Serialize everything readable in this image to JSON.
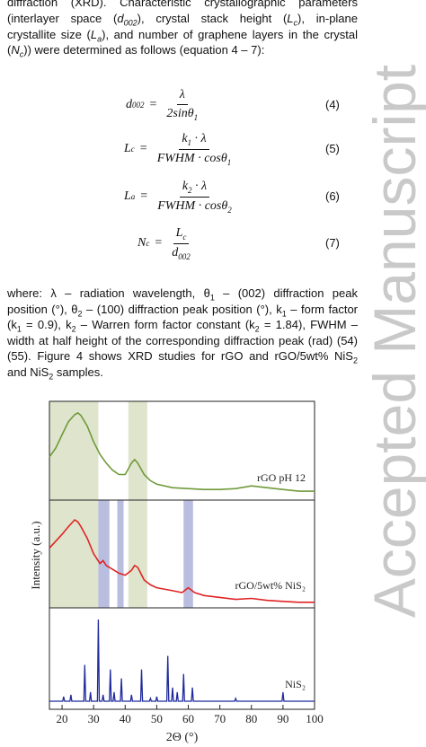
{
  "intro": [
    [
      "diffraction (XRD). Characteristic crystallographic parameters"
    ],
    [
      "(interlayer space (",
      "d",
      "002",
      "), crystal stack height (",
      "L",
      "c",
      "), in-plane"
    ],
    [
      "crystallite size (",
      "L",
      "a",
      "), and number of graphene layers in the crystal"
    ],
    [
      "(",
      "N",
      "c",
      ")) were determined as follows (equation 4 – 7):"
    ]
  ],
  "equations": [
    {
      "lhs": "d",
      "lhs_sub": "002",
      "eq": "=",
      "num": "λ",
      "den": "2sinθ",
      "den_sub": "1",
      "no": "(4)"
    },
    {
      "lhs": "L",
      "lhs_sub": "c",
      "eq": "=",
      "num": "k",
      "num_sub": "1",
      "num_rest": " · λ",
      "den": "FWHM · cosθ",
      "den_sub": "1",
      "no": "(5)"
    },
    {
      "lhs": "L",
      "lhs_sub": "a",
      "eq": "=",
      "num": "k",
      "num_sub": "2",
      "num_rest": " · λ",
      "den": "FWHM · cosθ",
      "den_sub": "2",
      "no": "(6)"
    },
    {
      "lhs": "N",
      "lhs_sub": "c",
      "eq": "=",
      "num": "L",
      "num_sub": "c",
      "den": "d",
      "den_sub": "002",
      "no": "(7)"
    }
  ],
  "where": [
    [
      "where: λ – radiation wavelength, θ",
      "1",
      " – (002) diffraction peak"
    ],
    [
      "position (°), θ",
      "2",
      " – (100) diffraction peak position (°), k",
      "1",
      " – form factor"
    ],
    [
      "(k",
      "1",
      " = 0.9), k",
      "2",
      " – Warren form factor constant (k",
      "2",
      " = 1.84), FWHM –"
    ],
    [
      "width at half height of the corresponding diffraction peak (rad) (54)"
    ],
    [
      "(55). Figure 4 shows XRD studies for rGO and rGO/5wt% NiS",
      "2"
    ],
    [
      "and NiS",
      "2",
      " samples."
    ]
  ],
  "watermark": "Accepted Manuscript",
  "chart_data": {
    "type": "line",
    "xlabel": "2Θ (°)",
    "ylabel": "Intensity (a.u.)",
    "xlim": [
      16,
      100
    ],
    "xticks": [
      20,
      30,
      40,
      50,
      60,
      70,
      80,
      90,
      100
    ],
    "ylim": [
      0,
      100
    ],
    "green_bands": [
      [
        16,
        31.5
      ],
      [
        41,
        47
      ]
    ],
    "green_color": "#dfe4cd",
    "blue_bands": [
      [
        31.5,
        35
      ],
      [
        37.5,
        39.5
      ],
      [
        58.5,
        61.5
      ]
    ],
    "blue_color": "#b9bde0",
    "series": [
      {
        "name": "rGO pH 12",
        "color": "#6f9a3a",
        "x": [
          16,
          18,
          20,
          22,
          24,
          25,
          26,
          28,
          30,
          32,
          34,
          36,
          38,
          40,
          42,
          43,
          44,
          46,
          48,
          50,
          55,
          60,
          65,
          70,
          75,
          80,
          85,
          90,
          95,
          100
        ],
        "values": [
          45,
          55,
          70,
          85,
          93,
          95,
          92,
          80,
          62,
          48,
          38,
          30,
          25,
          25,
          38,
          42,
          38,
          25,
          18,
          14,
          10,
          9,
          8,
          8,
          9,
          12,
          10,
          8,
          6,
          6
        ]
      },
      {
        "name": "rGO/5wt% NiS₂",
        "color": "#e02424",
        "x": [
          16,
          18,
          20,
          22,
          24,
          25,
          26,
          28,
          30,
          32,
          33,
          34,
          36,
          38,
          40,
          42,
          43,
          44,
          46,
          48,
          50,
          55,
          58,
          60,
          62,
          65,
          70,
          75,
          80,
          85,
          90,
          95,
          100
        ],
        "values": [
          58,
          65,
          72,
          80,
          87,
          85,
          80,
          68,
          52,
          42,
          45,
          40,
          36,
          32,
          30,
          35,
          40,
          38,
          25,
          20,
          17,
          14,
          12,
          17,
          12,
          9,
          7,
          5,
          6,
          4,
          3,
          2,
          2
        ]
      },
      {
        "name": "NiS₂",
        "color": "#1f2a9c",
        "x": [
          16,
          20.2,
          20.5,
          20.8,
          22.5,
          22.8,
          23.1,
          26.9,
          27.2,
          27.5,
          28.7,
          29,
          29.3,
          31.2,
          31.5,
          31.8,
          32.7,
          33,
          33.3,
          35,
          35.3,
          35.6,
          36.2,
          36.5,
          36.8,
          38.5,
          38.8,
          39.1,
          41.7,
          42,
          42.3,
          44.9,
          45.2,
          45.5,
          47.7,
          48,
          48.3,
          49.7,
          50,
          50.3,
          53.2,
          53.5,
          53.8,
          54.7,
          55,
          55.3,
          56.2,
          56.5,
          56.8,
          58.2,
          58.5,
          58.8,
          61,
          61.3,
          61.6,
          74.7,
          75,
          75.3,
          89.7,
          90,
          90.3,
          100
        ],
        "values": [
          5,
          5,
          10,
          5,
          5,
          12,
          5,
          5,
          45,
          5,
          5,
          15,
          5,
          5,
          95,
          5,
          5,
          12,
          5,
          5,
          40,
          5,
          5,
          15,
          5,
          5,
          30,
          5,
          5,
          12,
          5,
          5,
          40,
          5,
          5,
          8,
          5,
          5,
          10,
          5,
          5,
          55,
          5,
          5,
          20,
          5,
          5,
          15,
          5,
          5,
          35,
          5,
          5,
          20,
          5,
          5,
          8,
          5,
          5,
          15,
          5,
          5
        ]
      }
    ]
  }
}
